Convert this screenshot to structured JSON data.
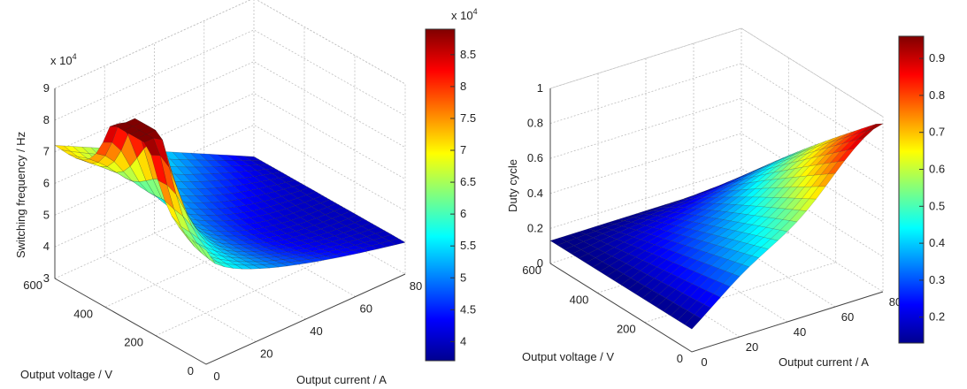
{
  "chart_data": [
    {
      "type": "surface",
      "xlabel": "Output current / A",
      "ylabel": "Output voltage / V",
      "zlabel": "Switching frequency / Hz",
      "z_exponent_label": "x 10",
      "z_exponent_power": "4",
      "x_ticks": [
        "0",
        "20",
        "40",
        "60",
        "80"
      ],
      "y_ticks": [
        "0",
        "200",
        "400",
        "600"
      ],
      "z_ticks": [
        "3",
        "4",
        "5",
        "6",
        "7",
        "8",
        "9"
      ],
      "xlim": [
        0,
        80
      ],
      "ylim": [
        0,
        600
      ],
      "zlim": [
        3,
        9
      ],
      "colorbar": {
        "range": [
          3.7,
          8.9
        ],
        "ticks": [
          "4",
          "4.5",
          "5",
          "5.5",
          "6",
          "6.5",
          "7",
          "7.5",
          "8",
          "8.5"
        ],
        "exponent_label": "x 10",
        "exponent_power": "4",
        "colormap": "jet"
      },
      "surface_samples": [
        {
          "current": 80,
          "voltage": 600,
          "value": 4.0
        },
        {
          "current": 40,
          "voltage": 600,
          "value": 5.0
        },
        {
          "current": 0,
          "voltage": 600,
          "value": 7.2
        },
        {
          "current": 80,
          "voltage": 300,
          "value": 4.2
        },
        {
          "current": 40,
          "voltage": 300,
          "value": 6.6
        },
        {
          "current": 0,
          "voltage": 300,
          "value": 8.9
        },
        {
          "current": 80,
          "voltage": 0,
          "value": 3.9
        },
        {
          "current": 40,
          "voltage": 0,
          "value": 4.1
        },
        {
          "current": 0,
          "voltage": 0,
          "value": 6.6
        }
      ]
    },
    {
      "type": "surface",
      "xlabel": "Output current / A",
      "ylabel": "Output voltage / V",
      "zlabel": "Duty cycle",
      "x_ticks": [
        "0",
        "20",
        "40",
        "60",
        "80"
      ],
      "y_ticks": [
        "0",
        "200",
        "400",
        "600"
      ],
      "z_ticks": [
        "0",
        "0.2",
        "0.4",
        "0.6",
        "0.8",
        "1"
      ],
      "xlim": [
        0,
        80
      ],
      "ylim": [
        0,
        600
      ],
      "zlim": [
        0,
        1
      ],
      "colorbar": {
        "range": [
          0.13,
          0.96
        ],
        "ticks": [
          "0.2",
          "0.3",
          "0.4",
          "0.5",
          "0.6",
          "0.7",
          "0.8",
          "0.9"
        ],
        "colormap": "jet"
      },
      "surface_samples": [
        {
          "current": 0,
          "voltage": 0,
          "value": 0.13
        },
        {
          "current": 80,
          "voltage": 0,
          "value": 0.95
        },
        {
          "current": 0,
          "voltage": 600,
          "value": 0.13
        },
        {
          "current": 80,
          "voltage": 600,
          "value": 0.13
        }
      ]
    }
  ]
}
